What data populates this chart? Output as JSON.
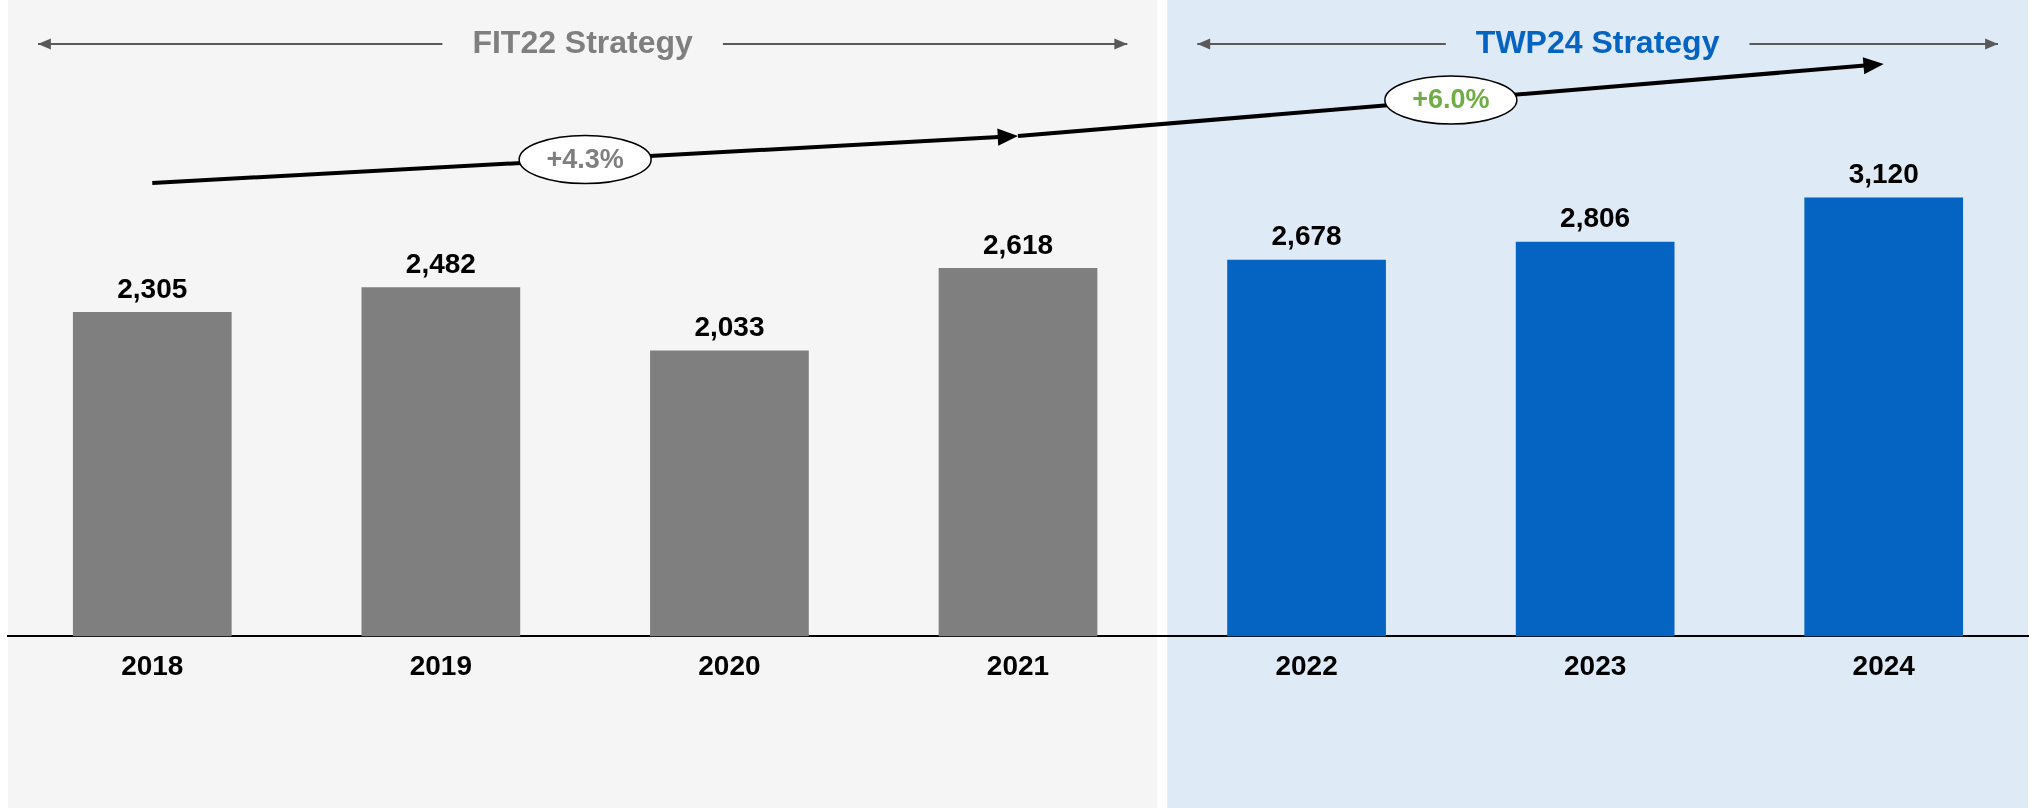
{
  "chart_data": {
    "type": "bar",
    "categories": [
      "2018",
      "2019",
      "2020",
      "2021",
      "2022",
      "2023",
      "2024"
    ],
    "values": [
      2305,
      2482,
      2033,
      2618,
      2678,
      2806,
      3120
    ],
    "colors": [
      "#7f7f7f",
      "#7f7f7f",
      "#7f7f7f",
      "#7f7f7f",
      "#0563c1",
      "#0563c1",
      "#0563c1"
    ],
    "value_labels": [
      "2,305",
      "2,482",
      "2,033",
      "2,618",
      "2,678",
      "2,806",
      "3,120"
    ],
    "grid": false,
    "legend": false,
    "bands": [
      {
        "axis": "x",
        "from": "2018",
        "to": "2021",
        "label": "FIT22 Strategy",
        "color": "#f5f5f5"
      },
      {
        "axis": "x",
        "from": "2022",
        "to": "2024",
        "label": "TWP24 Strategy",
        "color": "#deeaf6"
      }
    ],
    "annotations": [
      "+4.3%",
      "+6.0%"
    ]
  }
}
